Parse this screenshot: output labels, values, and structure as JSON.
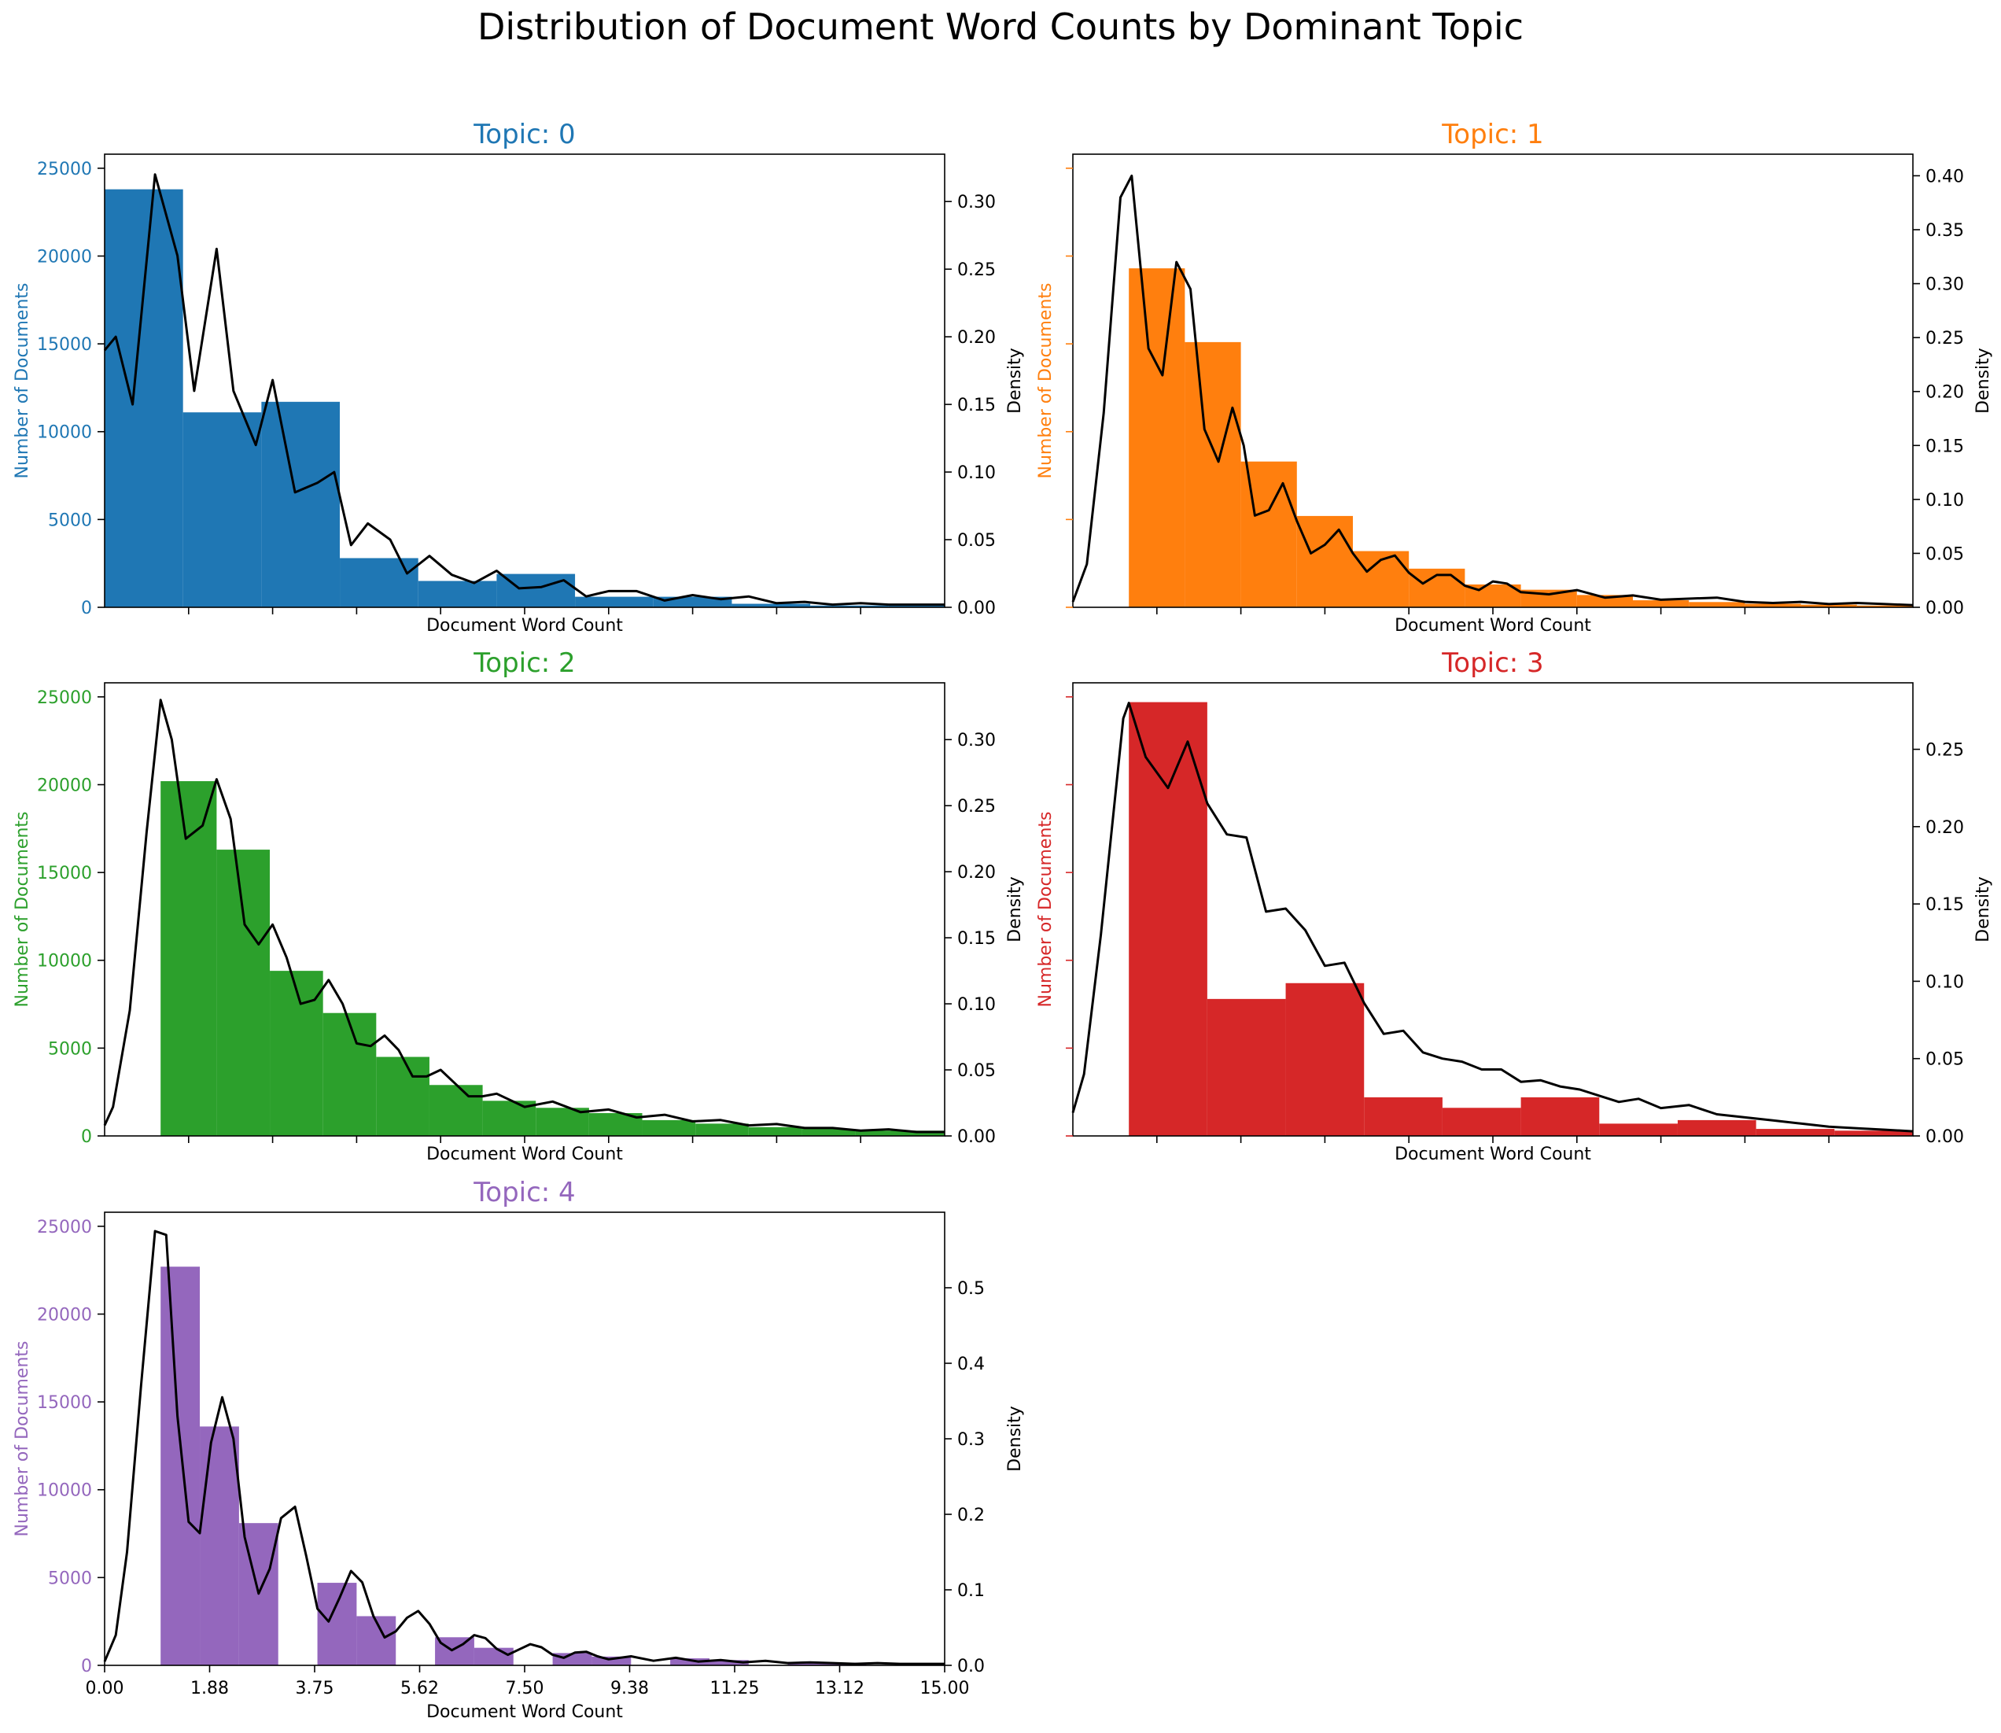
{
  "figure": {
    "title": "Distribution of Document Word Counts by Dominant Topic"
  },
  "axes_labels": {
    "xlabel": "Document Word Count",
    "ylabel_left": "Number of Documents",
    "ylabel_right": "Density"
  },
  "chart_data": [
    {
      "type": "bar",
      "title": "Topic: 0",
      "color": "#1f77b4",
      "xlim": [
        0,
        15
      ],
      "ylim_left": [
        0,
        25800
      ],
      "ylim_right": [
        0,
        0.335
      ],
      "left_ticks": [
        0,
        5000,
        10000,
        15000,
        20000,
        25000
      ],
      "right_ticks": [
        0.0,
        0.05,
        0.1,
        0.15,
        0.2,
        0.25,
        0.3
      ],
      "bar_edges": [
        0,
        1.4,
        2.8,
        4.2,
        5.6,
        7.0,
        8.4,
        9.8,
        11.2,
        12.6,
        14.0,
        15.0
      ],
      "bar_values": [
        23800,
        11100,
        11700,
        2800,
        1500,
        1900,
        600,
        600,
        200,
        100,
        100
      ],
      "density": {
        "x": [
          0,
          0.2,
          0.5,
          0.9,
          1.3,
          1.6,
          2.0,
          2.3,
          2.7,
          3.0,
          3.4,
          3.8,
          4.1,
          4.4,
          4.7,
          5.1,
          5.4,
          5.8,
          6.2,
          6.6,
          7.0,
          7.4,
          7.8,
          8.2,
          8.6,
          9.0,
          9.5,
          10.0,
          10.5,
          11.0,
          11.5,
          12.0,
          12.5,
          13.0,
          13.5,
          14.0,
          14.5,
          15.0
        ],
        "y": [
          0.19,
          0.2,
          0.15,
          0.32,
          0.26,
          0.16,
          0.265,
          0.16,
          0.12,
          0.168,
          0.085,
          0.092,
          0.1,
          0.046,
          0.062,
          0.05,
          0.025,
          0.038,
          0.024,
          0.018,
          0.027,
          0.014,
          0.015,
          0.02,
          0.008,
          0.012,
          0.012,
          0.005,
          0.009,
          0.006,
          0.008,
          0.003,
          0.004,
          0.002,
          0.003,
          0.002,
          0.002,
          0.002
        ]
      }
    },
    {
      "type": "bar",
      "title": "Topic: 1",
      "color": "#ff7f0e",
      "xlim": [
        0,
        15
      ],
      "ylim_left": [
        0,
        25800
      ],
      "ylim_right": [
        0,
        0.42
      ],
      "left_ticks": [
        0,
        5000,
        10000,
        15000,
        20000,
        25000
      ],
      "right_ticks": [
        0.0,
        0.05,
        0.1,
        0.15,
        0.2,
        0.25,
        0.3,
        0.35,
        0.4
      ],
      "bar_edges": [
        1.0,
        2.0,
        3.0,
        4.0,
        5.0,
        6.0,
        7.0,
        8.0,
        9.0,
        10.0,
        11.0,
        12.0,
        13.0,
        14.0,
        15.0
      ],
      "bar_values": [
        19300,
        15100,
        8300,
        5200,
        3200,
        2200,
        1300,
        1000,
        700,
        400,
        300,
        200,
        150,
        100
      ],
      "density": {
        "x": [
          0,
          0.25,
          0.55,
          0.85,
          1.05,
          1.35,
          1.6,
          1.85,
          2.1,
          2.35,
          2.6,
          2.85,
          3.05,
          3.25,
          3.5,
          3.75,
          4.0,
          4.25,
          4.5,
          4.75,
          5.0,
          5.25,
          5.5,
          5.75,
          6.0,
          6.25,
          6.5,
          6.75,
          7.0,
          7.25,
          7.5,
          7.75,
          8.0,
          8.5,
          9.0,
          9.5,
          10.0,
          10.5,
          11.0,
          11.5,
          12.0,
          12.5,
          13.0,
          13.5,
          14.0,
          14.5,
          15.0
        ],
        "y": [
          0.005,
          0.04,
          0.18,
          0.38,
          0.4,
          0.24,
          0.215,
          0.32,
          0.295,
          0.165,
          0.135,
          0.185,
          0.15,
          0.085,
          0.09,
          0.115,
          0.08,
          0.05,
          0.058,
          0.072,
          0.05,
          0.033,
          0.044,
          0.048,
          0.032,
          0.022,
          0.03,
          0.03,
          0.02,
          0.016,
          0.024,
          0.022,
          0.014,
          0.012,
          0.016,
          0.009,
          0.011,
          0.007,
          0.008,
          0.009,
          0.005,
          0.004,
          0.005,
          0.003,
          0.004,
          0.003,
          0.002
        ]
      }
    },
    {
      "type": "bar",
      "title": "Topic: 2",
      "color": "#2ca02c",
      "xlim": [
        0,
        15
      ],
      "ylim_left": [
        0,
        25800
      ],
      "ylim_right": [
        0,
        0.343
      ],
      "left_ticks": [
        0,
        5000,
        10000,
        15000,
        20000,
        25000
      ],
      "right_ticks": [
        0.0,
        0.05,
        0.1,
        0.15,
        0.2,
        0.25,
        0.3
      ],
      "bar_edges": [
        1.0,
        2.0,
        2.95,
        3.9,
        4.85,
        5.8,
        6.75,
        7.7,
        8.65,
        9.6,
        10.55,
        11.5,
        12.45,
        13.4,
        15.0
      ],
      "bar_values": [
        20200,
        16300,
        9400,
        7000,
        4500,
        2900,
        2000,
        1600,
        1300,
        900,
        700,
        500,
        400,
        300
      ],
      "density": {
        "x": [
          0,
          0.15,
          0.45,
          0.75,
          1.0,
          1.2,
          1.45,
          1.75,
          2.0,
          2.25,
          2.5,
          2.75,
          3.0,
          3.25,
          3.5,
          3.75,
          4.0,
          4.25,
          4.5,
          4.75,
          5.0,
          5.25,
          5.5,
          5.75,
          6.0,
          6.25,
          6.5,
          6.75,
          7.0,
          7.5,
          8.0,
          8.5,
          9.0,
          9.5,
          10.0,
          10.5,
          11.0,
          11.5,
          12.0,
          12.5,
          13.0,
          13.5,
          14.0,
          14.5,
          15.0
        ],
        "y": [
          0.008,
          0.022,
          0.095,
          0.23,
          0.33,
          0.3,
          0.225,
          0.235,
          0.27,
          0.24,
          0.16,
          0.145,
          0.16,
          0.135,
          0.1,
          0.103,
          0.118,
          0.1,
          0.07,
          0.068,
          0.076,
          0.065,
          0.045,
          0.045,
          0.05,
          0.04,
          0.03,
          0.03,
          0.032,
          0.022,
          0.026,
          0.018,
          0.02,
          0.014,
          0.016,
          0.011,
          0.012,
          0.008,
          0.009,
          0.006,
          0.006,
          0.004,
          0.005,
          0.003,
          0.003
        ]
      }
    },
    {
      "type": "bar",
      "title": "Topic: 3",
      "color": "#d62728",
      "xlim": [
        0,
        15
      ],
      "ylim_left": [
        0,
        25800
      ],
      "ylim_right": [
        0,
        0.293
      ],
      "left_ticks": [
        0,
        5000,
        10000,
        15000,
        20000,
        25000
      ],
      "right_ticks": [
        0.0,
        0.05,
        0.1,
        0.15,
        0.2,
        0.25
      ],
      "bar_edges": [
        1.0,
        2.4,
        3.8,
        5.2,
        6.6,
        8.0,
        9.4,
        10.8,
        12.2,
        13.6,
        15.0
      ],
      "bar_values": [
        24700,
        7800,
        8700,
        2200,
        1600,
        2200,
        700,
        900,
        400,
        300
      ],
      "density": {
        "x": [
          0,
          0.2,
          0.5,
          0.9,
          1.0,
          1.3,
          1.7,
          2.05,
          2.4,
          2.75,
          3.1,
          3.45,
          3.8,
          4.15,
          4.5,
          4.85,
          5.2,
          5.55,
          5.9,
          6.25,
          6.6,
          6.95,
          7.3,
          7.65,
          8.0,
          8.35,
          8.7,
          9.05,
          9.4,
          9.75,
          10.1,
          10.5,
          11.0,
          11.5,
          12.0,
          12.5,
          13.0,
          13.5,
          14.0,
          14.5,
          15.0
        ],
        "y": [
          0.015,
          0.04,
          0.13,
          0.27,
          0.28,
          0.245,
          0.225,
          0.255,
          0.215,
          0.195,
          0.193,
          0.145,
          0.147,
          0.133,
          0.11,
          0.112,
          0.086,
          0.066,
          0.068,
          0.054,
          0.05,
          0.048,
          0.043,
          0.043,
          0.035,
          0.036,
          0.032,
          0.03,
          0.026,
          0.022,
          0.024,
          0.018,
          0.02,
          0.014,
          0.012,
          0.01,
          0.008,
          0.006,
          0.005,
          0.004,
          0.003
        ]
      }
    },
    {
      "type": "bar",
      "title": "Topic: 4",
      "color": "#9467bd",
      "xlim": [
        0,
        15
      ],
      "ylim_left": [
        0,
        25800
      ],
      "ylim_right": [
        0,
        0.6
      ],
      "left_ticks": [
        0,
        5000,
        10000,
        15000,
        20000,
        25000
      ],
      "right_ticks": [
        0.0,
        0.1,
        0.2,
        0.3,
        0.4,
        0.5
      ],
      "x_ticks": [
        0,
        1.875,
        3.75,
        5.625,
        7.5,
        9.375,
        11.25,
        13.125,
        15
      ],
      "x_tick_labels": [
        "0.00",
        "1.88",
        "3.75",
        "5.62",
        "7.50",
        "9.38",
        "11.25",
        "13.12",
        "15.00"
      ],
      "bar_edges": [
        1.0,
        1.7,
        2.4,
        3.1,
        3.8,
        4.5,
        5.2,
        5.9,
        6.6,
        7.3,
        8.0,
        8.7,
        9.4,
        10.1,
        10.8,
        11.5,
        12.2,
        12.9,
        13.6,
        14.3,
        15.0
      ],
      "bar_values": [
        22700,
        13600,
        8100,
        0,
        4700,
        2800,
        0,
        1600,
        1000,
        0,
        700,
        500,
        0,
        400,
        300,
        0,
        200,
        150,
        0,
        100
      ],
      "density": {
        "x": [
          0,
          0.2,
          0.4,
          0.65,
          0.9,
          1.1,
          1.3,
          1.5,
          1.7,
          1.9,
          2.1,
          2.3,
          2.5,
          2.75,
          2.95,
          3.15,
          3.4,
          3.6,
          3.8,
          4.0,
          4.2,
          4.4,
          4.6,
          4.8,
          5.0,
          5.2,
          5.4,
          5.6,
          5.8,
          6.0,
          6.2,
          6.4,
          6.6,
          6.8,
          7.0,
          7.2,
          7.4,
          7.6,
          7.8,
          8.0,
          8.2,
          8.4,
          8.6,
          8.8,
          9.0,
          9.4,
          9.8,
          10.2,
          10.6,
          11.0,
          11.4,
          11.8,
          12.2,
          12.6,
          13.0,
          13.4,
          13.8,
          14.2,
          14.6,
          15.0
        ],
        "y": [
          0.005,
          0.04,
          0.15,
          0.37,
          0.575,
          0.57,
          0.33,
          0.19,
          0.175,
          0.295,
          0.355,
          0.3,
          0.17,
          0.095,
          0.128,
          0.195,
          0.21,
          0.145,
          0.075,
          0.058,
          0.09,
          0.125,
          0.11,
          0.065,
          0.037,
          0.045,
          0.063,
          0.072,
          0.055,
          0.03,
          0.02,
          0.028,
          0.04,
          0.036,
          0.022,
          0.014,
          0.021,
          0.028,
          0.024,
          0.014,
          0.01,
          0.017,
          0.018,
          0.012,
          0.008,
          0.012,
          0.006,
          0.01,
          0.005,
          0.007,
          0.004,
          0.006,
          0.003,
          0.004,
          0.003,
          0.002,
          0.003,
          0.002,
          0.002,
          0.002
        ]
      }
    }
  ]
}
